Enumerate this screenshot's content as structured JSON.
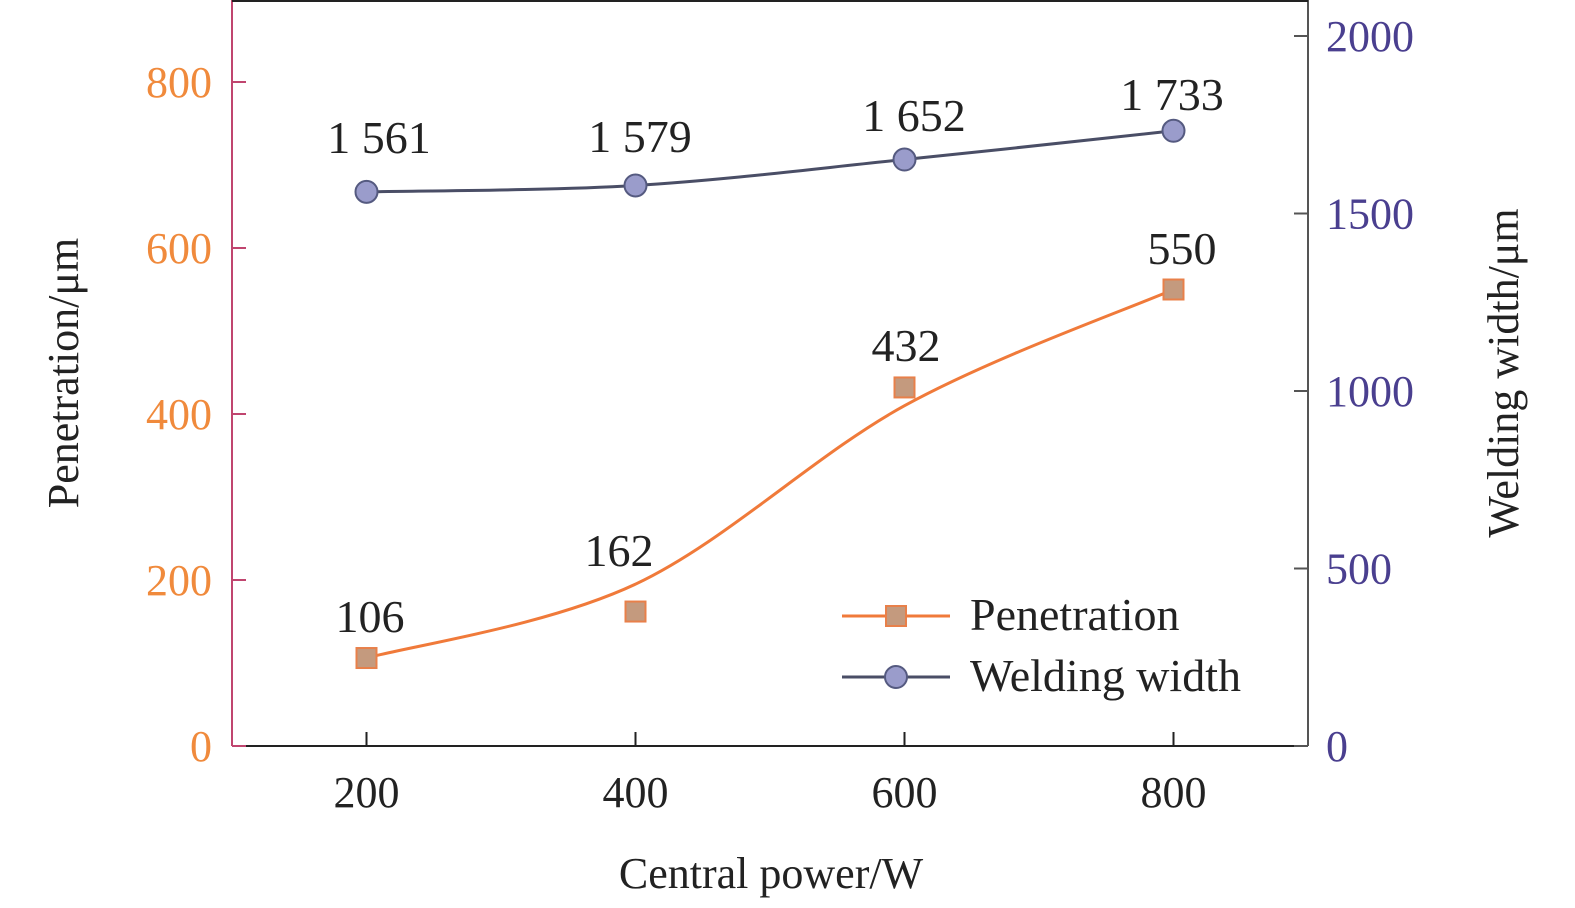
{
  "chart_data": {
    "type": "line",
    "title": "",
    "xlabel": "Central power/W",
    "ylabel_left": "Penetration/μm",
    "ylabel_right": "Welding width/μm",
    "x": [
      200,
      400,
      600,
      800
    ],
    "x_ticks": [
      "200",
      "400",
      "600",
      "800"
    ],
    "xlim": [
      100,
      900
    ],
    "y_left_lim": [
      0,
      900
    ],
    "y_left_ticks": [
      "0",
      "200",
      "400",
      "600",
      "800"
    ],
    "y_right_lim": [
      0,
      2100
    ],
    "y_right_ticks": [
      "0",
      "500",
      "1000",
      "1500",
      "2000"
    ],
    "series": [
      {
        "name": "Penetration",
        "axis": "left",
        "marker": "square",
        "values": [
          106,
          162,
          432,
          550
        ],
        "labels": [
          "106",
          "162",
          "432",
          "550"
        ],
        "line_color": "#f07a3a",
        "marker_fill": "#c49a7e",
        "marker_stroke": "#e8804a"
      },
      {
        "name": "Welding width",
        "axis": "right",
        "marker": "circle",
        "values": [
          1561,
          1579,
          1652,
          1733
        ],
        "labels": [
          "1 561",
          "1 579",
          "1 652",
          "1 733"
        ],
        "line_color": "#4a4e66",
        "marker_fill": "#9a9ccb",
        "marker_stroke": "#555a80"
      }
    ],
    "legend": {
      "location": "lower-right",
      "entries": [
        "Penetration",
        "Welding width"
      ]
    },
    "colors": {
      "left_axis": "#c0456f",
      "left_tick_labels": "#f08a3c",
      "right_axis": "#555555",
      "right_tick_labels": "#4a3f8f",
      "x_axis": "#222222"
    },
    "grid": false
  }
}
